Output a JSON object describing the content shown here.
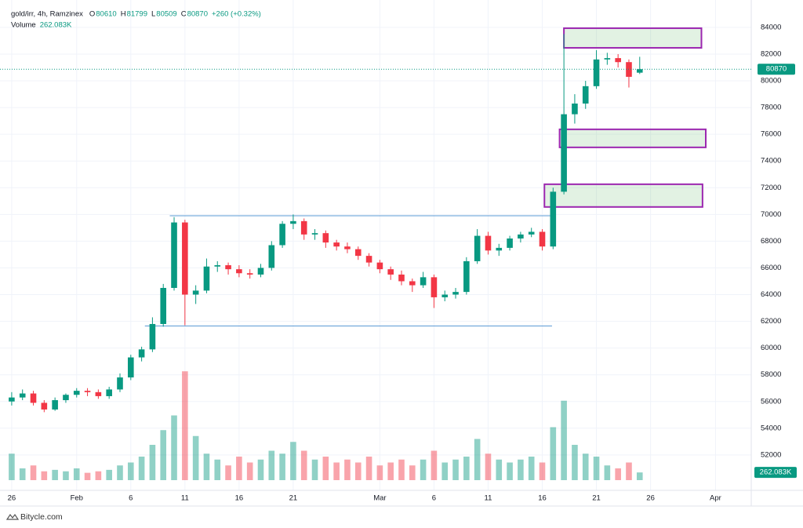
{
  "chart_data": {
    "type": "candlestick",
    "title": "gold/irr, 4h, Ramzinex",
    "ohlc_labels": [
      "O",
      "H",
      "L",
      "C"
    ],
    "change_label": "+260 (+0.32%)",
    "volume_title": "Volume",
    "volume_label": "262.083K",
    "x": [
      0,
      1,
      2,
      3,
      4,
      5,
      6,
      7,
      8,
      9,
      10,
      11,
      12,
      13,
      14,
      15,
      16,
      17,
      18,
      19,
      20,
      21,
      22,
      23,
      24,
      25,
      26,
      27,
      28,
      29,
      30,
      31,
      32,
      33,
      34,
      35,
      36,
      37,
      38,
      39,
      40,
      41,
      42,
      43,
      44,
      45,
      46,
      47,
      48,
      49,
      50,
      51,
      52,
      53,
      54,
      55,
      56,
      57,
      58
    ],
    "open": [
      56000,
      56300,
      56600,
      55900,
      55400,
      56100,
      56500,
      56800,
      56700,
      56400,
      56900,
      57800,
      59300,
      59900,
      61800,
      64500,
      69400,
      64000,
      64300,
      66100,
      66200,
      65900,
      65600,
      65500,
      66000,
      67700,
      69300,
      69500,
      68500,
      68600,
      67900,
      67600,
      67400,
      66900,
      66400,
      65900,
      65500,
      65000,
      64700,
      65300,
      63800,
      64000,
      64200,
      66500,
      68400,
      67300,
      67500,
      68200,
      68500,
      68700,
      67600,
      71700,
      77500,
      78300,
      79600,
      81600,
      81700,
      81400,
      80610
    ],
    "high": [
      56700,
      56900,
      56800,
      56100,
      56300,
      56600,
      57000,
      57000,
      56900,
      57100,
      58100,
      59500,
      60100,
      62300,
      64800,
      69800,
      69600,
      64700,
      66700,
      66500,
      66400,
      66200,
      65900,
      66300,
      68000,
      69500,
      70000,
      69700,
      68900,
      68800,
      68100,
      67900,
      67600,
      67100,
      66600,
      66100,
      65800,
      65200,
      65700,
      65500,
      64300,
      64500,
      66800,
      68900,
      68700,
      67800,
      68400,
      68700,
      69000,
      68900,
      72000,
      83500,
      79000,
      80000,
      82300,
      82100,
      82000,
      81600,
      81799
    ],
    "low": [
      55700,
      56100,
      55700,
      55200,
      55300,
      55900,
      56300,
      56400,
      56200,
      56200,
      56700,
      57600,
      59000,
      59700,
      61600,
      64300,
      61700,
      63300,
      64100,
      65700,
      65500,
      65300,
      65200,
      65300,
      65800,
      67500,
      68900,
      68100,
      68100,
      67500,
      67300,
      67100,
      66600,
      66100,
      65600,
      65100,
      64700,
      64200,
      64500,
      63000,
      63500,
      63700,
      64000,
      66300,
      67000,
      66900,
      67300,
      67900,
      68300,
      67300,
      67400,
      71500,
      76800,
      77900,
      79400,
      81200,
      81000,
      79500,
      80509
    ],
    "close": [
      56300,
      56600,
      55900,
      55400,
      56100,
      56500,
      56800,
      56700,
      56400,
      56900,
      57800,
      59300,
      59900,
      61800,
      64500,
      69400,
      64000,
      64300,
      66100,
      66200,
      65900,
      65600,
      65500,
      66000,
      67700,
      69300,
      69500,
      68500,
      68600,
      67900,
      67600,
      67400,
      66900,
      66400,
      65900,
      65500,
      65000,
      64700,
      65300,
      63800,
      64000,
      64200,
      66500,
      68400,
      67300,
      67500,
      68200,
      68500,
      68700,
      67600,
      71700,
      77500,
      78300,
      79600,
      81600,
      81700,
      81400,
      80300,
      80870
    ],
    "volume": [
      900,
      400,
      500,
      300,
      350,
      300,
      400,
      250,
      300,
      350,
      500,
      600,
      800,
      1200,
      1700,
      2200,
      3700,
      1500,
      900,
      700,
      500,
      800,
      600,
      700,
      1000,
      900,
      1300,
      1000,
      700,
      800,
      600,
      700,
      600,
      800,
      500,
      600,
      700,
      500,
      700,
      1000,
      600,
      700,
      800,
      1400,
      900,
      700,
      600,
      700,
      800,
      600,
      1800,
      2700,
      1200,
      900,
      800,
      500,
      400,
      600,
      262.083
    ],
    "up_color": "#089981",
    "down_color": "#f23645",
    "xlim": [
      -0.5,
      68.3
    ],
    "xticks": [
      {
        "value": 0,
        "label": "26"
      },
      {
        "value": 6,
        "label": "Feb"
      },
      {
        "value": 11,
        "label": "6"
      },
      {
        "value": 16,
        "label": "11"
      },
      {
        "value": 21,
        "label": "16"
      },
      {
        "value": 26,
        "label": "21"
      },
      {
        "value": 34,
        "label": "Mar"
      },
      {
        "value": 39,
        "label": "6"
      },
      {
        "value": 44,
        "label": "11"
      },
      {
        "value": 49,
        "label": "16"
      },
      {
        "value": 54,
        "label": "21"
      },
      {
        "value": 59,
        "label": "26"
      },
      {
        "value": 65,
        "label": "Apr"
      }
    ],
    "ylim": [
      49350,
      86050
    ],
    "yticks": [
      52000,
      54000,
      56000,
      58000,
      60000,
      62000,
      64000,
      66000,
      68000,
      70000,
      72000,
      74000,
      76000,
      78000,
      80000,
      82000,
      84000
    ],
    "vlim": [
      0,
      4000
    ],
    "grid": true,
    "zones": [
      {
        "x": [
          51.0,
          63.7
        ],
        "ylim": [
          82470,
          83940
        ]
      },
      {
        "x": [
          50.6,
          64.1
        ],
        "ylim": [
          75020,
          76370
        ]
      },
      {
        "x": [
          49.2,
          63.8
        ],
        "ylim": [
          70560,
          72260
        ]
      }
    ],
    "levels": [
      {
        "x": [
          14.6,
          49.8
        ],
        "y": 69900
      },
      {
        "x": [
          12.3,
          49.9
        ],
        "y": 61650
      }
    ]
  },
  "footer": "Bitycle.com"
}
